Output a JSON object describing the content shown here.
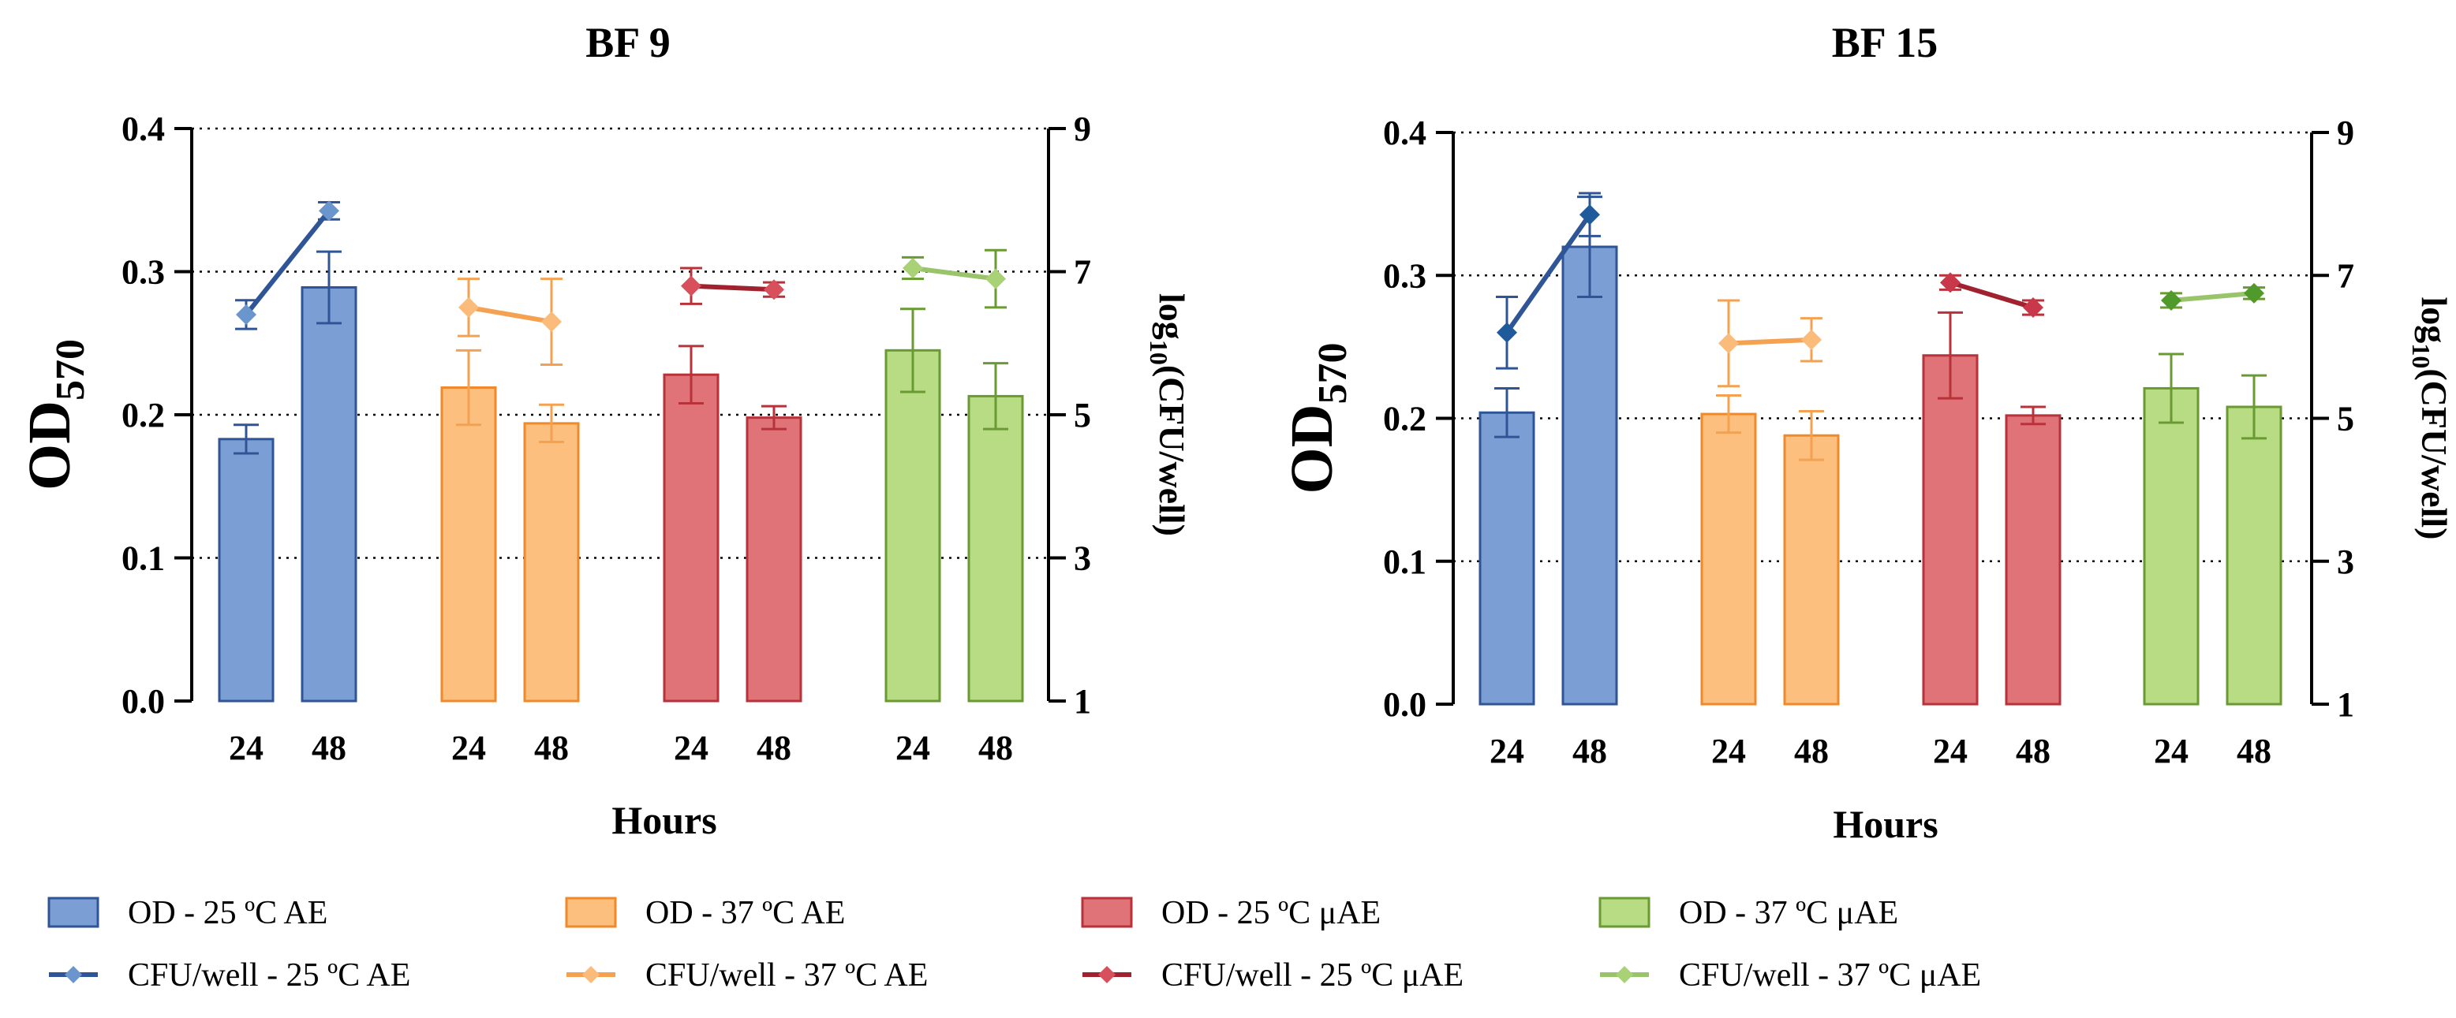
{
  "chart_data": [
    {
      "type": "bar",
      "title": "BF 9",
      "xlabel": "Hours",
      "ylabel": "OD",
      "ylabel_sub": "570",
      "y2label": "log",
      "y2label_sub": "10",
      "y2label_rest": "(CFU/well)",
      "ylim": [
        0,
        0.4
      ],
      "yticks": [
        "0.0",
        "0.1",
        "0.2",
        "0.3",
        "0.4"
      ],
      "y2lim": [
        1,
        9
      ],
      "y2ticks": [
        "1",
        "3",
        "5",
        "7",
        "9"
      ],
      "categories": [
        "24",
        "48"
      ],
      "groups": [
        {
          "od": [
            0.183,
            0.289
          ],
          "od_err": [
            0.01,
            0.025
          ],
          "cfu": [
            6.4,
            7.85
          ],
          "cfu_err": [
            0.2,
            0.12
          ]
        },
        {
          "od": [
            0.219,
            0.194
          ],
          "od_err": [
            0.026,
            0.013
          ],
          "cfu": [
            6.5,
            6.3
          ],
          "cfu_err": [
            0.4,
            0.6
          ]
        },
        {
          "od": [
            0.228,
            0.198
          ],
          "od_err": [
            0.02,
            0.008
          ],
          "cfu": [
            6.8,
            6.75
          ],
          "cfu_err": [
            0.25,
            0.1
          ]
        },
        {
          "od": [
            0.245,
            0.213
          ],
          "od_err": [
            0.029,
            0.023
          ],
          "cfu": [
            7.05,
            6.9
          ],
          "cfu_err": [
            0.15,
            0.4
          ]
        }
      ]
    },
    {
      "type": "bar",
      "title": "BF 15",
      "xlabel": "Hours",
      "ylabel": "OD",
      "ylabel_sub": "570",
      "y2label": "log",
      "y2label_sub": "10",
      "y2label_rest": "(CFU/well)",
      "ylim": [
        0,
        0.4
      ],
      "yticks": [
        "0.0",
        "0.1",
        "0.2",
        "0.3",
        "0.4"
      ],
      "y2lim": [
        1,
        9
      ],
      "y2ticks": [
        "1",
        "3",
        "5",
        "7",
        "9"
      ],
      "categories": [
        "24",
        "48"
      ],
      "groups": [
        {
          "od": [
            0.204,
            0.32
          ],
          "od_err": [
            0.017,
            0.035
          ],
          "cfu": [
            6.2,
            7.85
          ],
          "cfu_err": [
            0.5,
            0.3
          ]
        },
        {
          "od": [
            0.203,
            0.188
          ],
          "od_err": [
            0.013,
            0.017
          ],
          "cfu": [
            6.05,
            6.1
          ],
          "cfu_err": [
            0.6,
            0.3
          ]
        },
        {
          "od": [
            0.244,
            0.202
          ],
          "od_err": [
            0.03,
            0.006
          ],
          "cfu": [
            6.9,
            6.55
          ],
          "cfu_err": [
            0.1,
            0.1
          ]
        },
        {
          "od": [
            0.221,
            0.208
          ],
          "od_err": [
            0.024,
            0.022
          ],
          "cfu": [
            6.65,
            6.75
          ],
          "cfu_err": [
            0.1,
            0.08
          ]
        }
      ]
    }
  ],
  "legend": {
    "bars": [
      {
        "label": "OD - 25 ºC AE"
      },
      {
        "label": "OD - 37 ºC AE"
      },
      {
        "label": "OD - 25 ºC μAE"
      },
      {
        "label": "OD - 37 ºC μAE"
      }
    ],
    "lines": [
      {
        "label": "CFU/well - 25 ºC AE"
      },
      {
        "label": "CFU/well - 37 ºC AE"
      },
      {
        "label": "CFU/well - 25 ºC μAE"
      },
      {
        "label": "CFU/well - 37 ºC μAE"
      }
    ]
  },
  "colors": {
    "bar_fill": [
      "#7b9fd4",
      "#fdbf7e",
      "#e07378",
      "#b8dc84"
    ],
    "bar_stroke": [
      "#2f5597",
      "#f0892a",
      "#b8323a",
      "#6a9a32"
    ],
    "line": [
      "#2f5597",
      "#f4a252",
      "#a0222e",
      "#9ac46a"
    ],
    "marker": [
      "#6b95cd",
      "#fbbb7a",
      "#d8505c",
      "#a9d277"
    ],
    "marker_bf15": [
      "#1f5a9a",
      "#fbbb7a",
      "#c8384a",
      "#4f9a2a"
    ],
    "errorbar": [
      "#2f5597",
      "#f4a252",
      "#b8323a",
      "#6a9a32"
    ]
  }
}
